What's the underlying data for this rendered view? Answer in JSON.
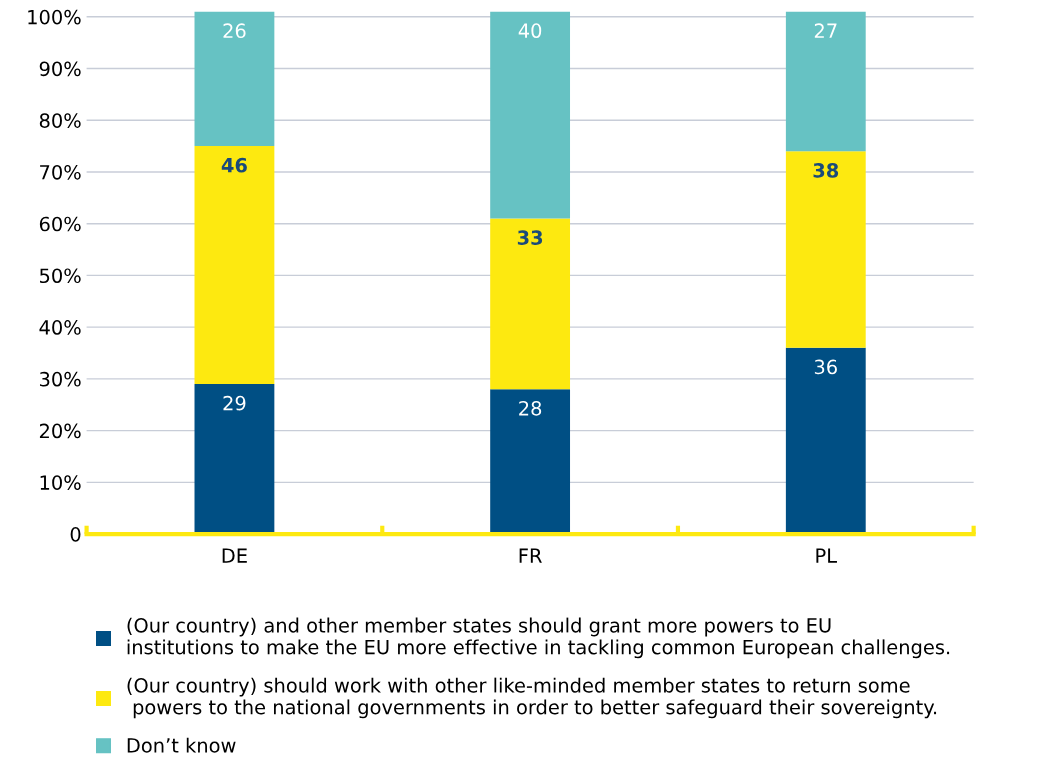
{
  "chart_data": {
    "type": "bar",
    "stacked": true,
    "categories": [
      "DE",
      "FR",
      "PL"
    ],
    "series": [
      {
        "name": "(Our country) and other member states should grant more powers to EU\ninstitutions to make the EU more effective in tackling common European challenges.",
        "color": "#004f84",
        "values": [
          29,
          28,
          36
        ]
      },
      {
        "name": "(Our country) should work with other like-minded member states to return some\n powers to the national governments in order to better safeguard their sovereignty.",
        "color": "#fde910",
        "values": [
          46,
          33,
          38
        ]
      },
      {
        "name": "Don’t know",
        "color": "#66c2c3",
        "values": [
          26,
          40,
          27
        ]
      }
    ],
    "ylim": [
      0,
      101
    ],
    "yticks": [
      {
        "value": 0,
        "label": "0"
      },
      {
        "value": 10,
        "label": "10%"
      },
      {
        "value": 20,
        "label": "20%"
      },
      {
        "value": 30,
        "label": "30%"
      },
      {
        "value": 40,
        "label": "40%"
      },
      {
        "value": 50,
        "label": "50%"
      },
      {
        "value": 60,
        "label": "60%"
      },
      {
        "value": 70,
        "label": "70%"
      },
      {
        "value": 80,
        "label": "80%"
      },
      {
        "value": 90,
        "label": "90%"
      },
      {
        "value": 100,
        "label": "100%"
      }
    ],
    "grid": "y",
    "legend": "bottom",
    "data_labels": true
  }
}
